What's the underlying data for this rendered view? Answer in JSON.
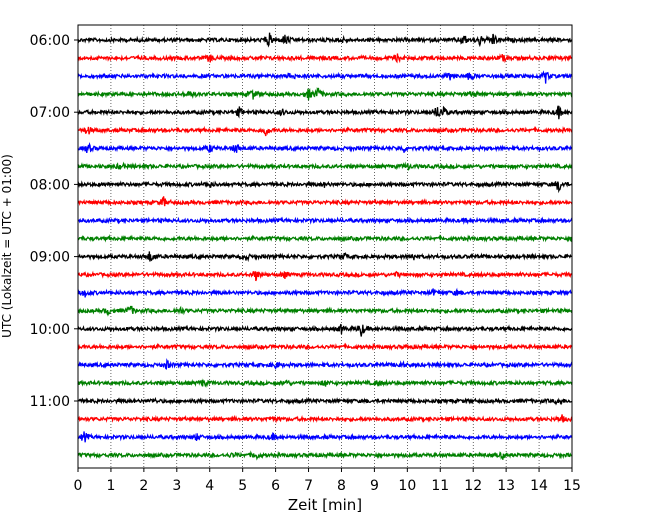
{
  "chart_data": {
    "type": "line",
    "subtype": "helicorder",
    "xlabel": "Zeit  [min]",
    "ylabel": "UTC (Lokalzeit = UTC + 01:00)",
    "xlim": [
      0,
      15
    ],
    "x_ticks": [
      0,
      1,
      2,
      3,
      4,
      5,
      6,
      7,
      8,
      9,
      10,
      11,
      12,
      13,
      14,
      15
    ],
    "y_tick_labels": [
      "06:00",
      "07:00",
      "08:00",
      "09:00",
      "10:00",
      "11:00"
    ],
    "grid": "vertical dotted lines at each minute",
    "minutes_per_trace": 15,
    "trace_colors": [
      "#000000",
      "#ff0000",
      "#0000ff",
      "#008000"
    ],
    "traces": [
      {
        "start": "06:00",
        "events": [
          [
            5.8,
            7
          ],
          [
            6.3,
            6
          ],
          [
            11.7,
            6
          ],
          [
            12.2,
            5
          ],
          [
            12.6,
            6
          ],
          [
            8.0,
            3
          ]
        ]
      },
      {
        "start": "06:15",
        "events": [
          [
            4.0,
            4
          ],
          [
            9.7,
            3
          ],
          [
            12.9,
            3
          ]
        ]
      },
      {
        "start": "06:30",
        "events": [
          [
            6.5,
            5
          ],
          [
            11.3,
            3
          ],
          [
            11.9,
            4
          ],
          [
            14.2,
            6
          ]
        ]
      },
      {
        "start": "06:45",
        "events": [
          [
            3.4,
            4
          ],
          [
            5.3,
            5
          ],
          [
            7.0,
            5
          ],
          [
            7.3,
            6
          ],
          [
            12.0,
            3
          ]
        ]
      },
      {
        "start": "07:00",
        "events": [
          [
            4.9,
            4
          ],
          [
            10.9,
            6
          ],
          [
            11.1,
            5
          ],
          [
            14.6,
            6
          ],
          [
            6.2,
            3
          ]
        ]
      },
      {
        "start": "07:15",
        "events": [
          [
            0.3,
            4
          ],
          [
            5.7,
            5
          ]
        ]
      },
      {
        "start": "07:30",
        "events": [
          [
            0.3,
            5
          ],
          [
            4.0,
            4
          ],
          [
            4.8,
            5
          ],
          [
            9.9,
            3
          ]
        ]
      },
      {
        "start": "07:45",
        "events": [
          [
            1.3,
            3
          ],
          [
            10.0,
            3
          ]
        ]
      },
      {
        "start": "08:00",
        "events": [
          [
            14.6,
            7
          ],
          [
            7.5,
            2
          ],
          [
            4.0,
            2
          ]
        ]
      },
      {
        "start": "08:15",
        "events": [
          [
            2.6,
            5
          ]
        ]
      },
      {
        "start": "08:30",
        "events": [
          [
            11.8,
            1
          ]
        ]
      },
      {
        "start": "08:45",
        "events": [
          [
            4.5,
            1
          ]
        ]
      },
      {
        "start": "09:00",
        "events": [
          [
            2.2,
            6
          ],
          [
            5.1,
            3
          ],
          [
            8.1,
            3
          ],
          [
            10.2,
            3
          ]
        ]
      },
      {
        "start": "09:15",
        "events": [
          [
            5.4,
            5
          ],
          [
            6.3,
            3
          ],
          [
            9.7,
            2
          ]
        ]
      },
      {
        "start": "09:30",
        "events": [
          [
            0.2,
            4
          ],
          [
            10.8,
            3
          ],
          [
            11.5,
            2
          ]
        ]
      },
      {
        "start": "09:45",
        "events": [
          [
            1.6,
            5
          ],
          [
            3.1,
            3
          ],
          [
            0.9,
            3
          ]
        ]
      },
      {
        "start": "10:00",
        "events": [
          [
            8.6,
            7
          ],
          [
            8.0,
            4
          ]
        ]
      },
      {
        "start": "10:15",
        "events": [
          [
            10.1,
            1
          ]
        ]
      },
      {
        "start": "10:30",
        "events": [
          [
            2.7,
            4
          ],
          [
            6.0,
            3
          ],
          [
            9.8,
            3
          ]
        ]
      },
      {
        "start": "10:45",
        "events": [
          [
            3.8,
            3
          ],
          [
            6.3,
            3
          ],
          [
            7.5,
            3
          ],
          [
            9.1,
            3
          ]
        ]
      },
      {
        "start": "11:00",
        "events": [
          [
            14.6,
            3
          ],
          [
            2.3,
            2
          ]
        ]
      },
      {
        "start": "11:15",
        "events": [
          [
            5.9,
            3
          ],
          [
            14.7,
            3
          ]
        ]
      },
      {
        "start": "11:30",
        "events": [
          [
            0.2,
            5
          ],
          [
            3.6,
            3
          ],
          [
            5.9,
            3
          ]
        ]
      },
      {
        "start": "11:45",
        "events": [
          [
            5.4,
            4
          ],
          [
            12.9,
            3
          ],
          [
            4.7,
            2
          ]
        ]
      }
    ]
  }
}
